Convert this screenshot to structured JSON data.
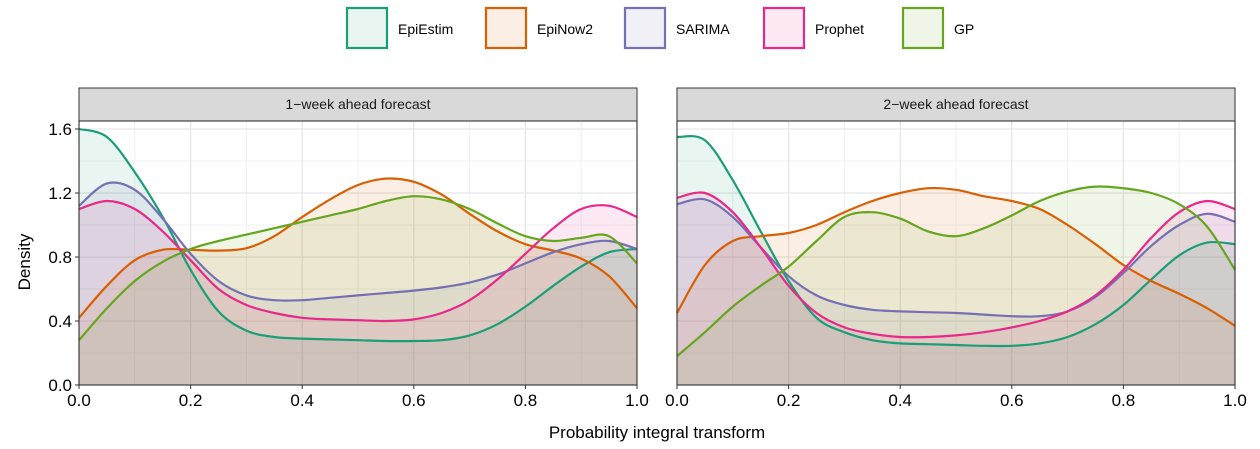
{
  "chart_data": {
    "type": "area",
    "xlabel": "Probability integral transform",
    "ylabel": "Density",
    "xlim": [
      0,
      1
    ],
    "ylim": [
      0,
      1.65
    ],
    "x_ticks": [
      "0.0",
      "0.2",
      "0.4",
      "0.6",
      "0.8",
      "1.0"
    ],
    "y_ticks": [
      "0.0",
      "0.4",
      "0.8",
      "1.2",
      "1.6"
    ],
    "grid": true,
    "legend_position": "top",
    "facets": [
      {
        "title": "1−week ahead forecast",
        "series": [
          {
            "name": "EpiEstim",
            "color": "#1b9e77",
            "x": [
              0,
              0.05,
              0.1,
              0.15,
              0.2,
              0.25,
              0.3,
              0.35,
              0.4,
              0.45,
              0.5,
              0.55,
              0.6,
              0.65,
              0.7,
              0.75,
              0.8,
              0.85,
              0.9,
              0.95,
              1.0
            ],
            "y": [
              1.6,
              1.55,
              1.33,
              1.05,
              0.72,
              0.46,
              0.34,
              0.3,
              0.29,
              0.285,
              0.28,
              0.275,
              0.275,
              0.28,
              0.31,
              0.38,
              0.49,
              0.62,
              0.74,
              0.83,
              0.85
            ]
          },
          {
            "name": "EpiNow2",
            "color": "#d95f02",
            "x": [
              0,
              0.05,
              0.1,
              0.15,
              0.2,
              0.25,
              0.3,
              0.35,
              0.4,
              0.45,
              0.5,
              0.55,
              0.6,
              0.65,
              0.7,
              0.75,
              0.8,
              0.85,
              0.9,
              0.95,
              1.0
            ],
            "y": [
              0.42,
              0.62,
              0.78,
              0.845,
              0.845,
              0.84,
              0.855,
              0.93,
              1.05,
              1.16,
              1.25,
              1.29,
              1.27,
              1.19,
              1.07,
              0.96,
              0.88,
              0.84,
              0.79,
              0.68,
              0.48
            ]
          },
          {
            "name": "SARIMA",
            "color": "#7570b3",
            "x": [
              0,
              0.05,
              0.1,
              0.15,
              0.2,
              0.25,
              0.3,
              0.35,
              0.4,
              0.45,
              0.5,
              0.55,
              0.6,
              0.65,
              0.7,
              0.75,
              0.8,
              0.85,
              0.9,
              0.95,
              1.0
            ],
            "y": [
              1.12,
              1.26,
              1.22,
              1.04,
              0.82,
              0.65,
              0.56,
              0.53,
              0.53,
              0.545,
              0.56,
              0.575,
              0.59,
              0.61,
              0.64,
              0.69,
              0.76,
              0.83,
              0.88,
              0.9,
              0.85
            ]
          },
          {
            "name": "Prophet",
            "color": "#e7298a",
            "x": [
              0,
              0.05,
              0.1,
              0.15,
              0.2,
              0.25,
              0.3,
              0.35,
              0.4,
              0.45,
              0.5,
              0.55,
              0.6,
              0.65,
              0.7,
              0.75,
              0.8,
              0.85,
              0.9,
              0.95,
              1.0
            ],
            "y": [
              1.1,
              1.15,
              1.1,
              0.96,
              0.78,
              0.6,
              0.5,
              0.45,
              0.42,
              0.41,
              0.405,
              0.4,
              0.41,
              0.45,
              0.53,
              0.66,
              0.82,
              0.98,
              1.1,
              1.12,
              1.05
            ]
          },
          {
            "name": "GP",
            "color": "#66a61e",
            "x": [
              0,
              0.05,
              0.1,
              0.15,
              0.2,
              0.25,
              0.3,
              0.35,
              0.4,
              0.45,
              0.5,
              0.55,
              0.6,
              0.65,
              0.7,
              0.75,
              0.8,
              0.85,
              0.9,
              0.95,
              1.0
            ],
            "y": [
              0.28,
              0.48,
              0.65,
              0.77,
              0.85,
              0.9,
              0.94,
              0.98,
              1.02,
              1.06,
              1.1,
              1.15,
              1.18,
              1.16,
              1.1,
              1.01,
              0.93,
              0.9,
              0.92,
              0.93,
              0.76
            ]
          }
        ]
      },
      {
        "title": "2−week ahead forecast",
        "series": [
          {
            "name": "EpiEstim",
            "color": "#1b9e77",
            "x": [
              0,
              0.05,
              0.1,
              0.15,
              0.2,
              0.25,
              0.3,
              0.35,
              0.4,
              0.45,
              0.5,
              0.55,
              0.6,
              0.65,
              0.7,
              0.75,
              0.8,
              0.85,
              0.9,
              0.95,
              1.0
            ],
            "y": [
              1.55,
              1.53,
              1.28,
              0.96,
              0.65,
              0.42,
              0.33,
              0.28,
              0.26,
              0.255,
              0.25,
              0.245,
              0.245,
              0.26,
              0.3,
              0.38,
              0.5,
              0.66,
              0.81,
              0.89,
              0.88
            ]
          },
          {
            "name": "EpiNow2",
            "color": "#d95f02",
            "x": [
              0,
              0.05,
              0.1,
              0.15,
              0.2,
              0.25,
              0.3,
              0.35,
              0.4,
              0.45,
              0.5,
              0.55,
              0.6,
              0.65,
              0.7,
              0.75,
              0.8,
              0.85,
              0.9,
              0.95,
              1.0
            ],
            "y": [
              0.45,
              0.75,
              0.9,
              0.93,
              0.95,
              1.0,
              1.08,
              1.15,
              1.2,
              1.23,
              1.22,
              1.18,
              1.15,
              1.1,
              1.0,
              0.88,
              0.75,
              0.65,
              0.57,
              0.48,
              0.37
            ]
          },
          {
            "name": "SARIMA",
            "color": "#7570b3",
            "x": [
              0,
              0.05,
              0.1,
              0.15,
              0.2,
              0.25,
              0.3,
              0.35,
              0.4,
              0.45,
              0.5,
              0.55,
              0.6,
              0.65,
              0.7,
              0.75,
              0.8,
              0.85,
              0.9,
              0.95,
              1.0
            ],
            "y": [
              1.13,
              1.16,
              1.05,
              0.86,
              0.68,
              0.56,
              0.5,
              0.47,
              0.46,
              0.455,
              0.45,
              0.44,
              0.43,
              0.43,
              0.46,
              0.55,
              0.7,
              0.87,
              1.0,
              1.07,
              1.02
            ]
          },
          {
            "name": "Prophet",
            "color": "#e7298a",
            "x": [
              0,
              0.05,
              0.1,
              0.15,
              0.2,
              0.25,
              0.3,
              0.35,
              0.4,
              0.45,
              0.5,
              0.55,
              0.6,
              0.65,
              0.7,
              0.75,
              0.8,
              0.85,
              0.9,
              0.95,
              1.0
            ],
            "y": [
              1.17,
              1.2,
              1.08,
              0.86,
              0.62,
              0.45,
              0.36,
              0.32,
              0.3,
              0.3,
              0.31,
              0.33,
              0.36,
              0.4,
              0.46,
              0.56,
              0.72,
              0.92,
              1.08,
              1.15,
              1.1
            ]
          },
          {
            "name": "GP",
            "color": "#66a61e",
            "x": [
              0,
              0.05,
              0.1,
              0.15,
              0.2,
              0.25,
              0.3,
              0.35,
              0.4,
              0.45,
              0.5,
              0.55,
              0.6,
              0.65,
              0.7,
              0.75,
              0.8,
              0.85,
              0.9,
              0.95,
              1.0
            ],
            "y": [
              0.18,
              0.33,
              0.49,
              0.62,
              0.74,
              0.9,
              1.05,
              1.08,
              1.04,
              0.96,
              0.93,
              0.98,
              1.06,
              1.15,
              1.21,
              1.24,
              1.23,
              1.2,
              1.13,
              0.99,
              0.72
            ]
          }
        ]
      }
    ]
  }
}
